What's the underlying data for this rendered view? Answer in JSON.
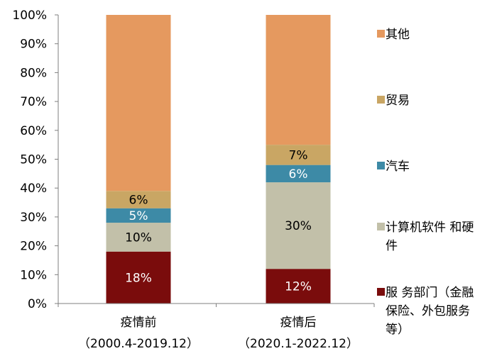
{
  "chart_data": {
    "type": "bar",
    "stacked": true,
    "percent_stacked": true,
    "categories": [
      [
        "疫情前",
        "（2000.4-2019.12）"
      ],
      [
        "疫情后",
        "（2020.1-2022.12）"
      ]
    ],
    "ylim": [
      0,
      100
    ],
    "ytick_step": 10,
    "ytick_suffix": "%",
    "grid": false,
    "legend_position": "right",
    "series": [
      {
        "name": "服 务部门（金融保险、外包服务等）",
        "legend_lines": [
          "服 务部门（金融",
          "保险、外包服务",
          "等）"
        ],
        "color": "#7a0c0c",
        "label_color": "#ffffff",
        "values": [
          18,
          12
        ],
        "labels": [
          "18%",
          "12%"
        ]
      },
      {
        "name": "计算机软件 和硬件",
        "legend_lines": [
          "计算机软件 和硬",
          "件"
        ],
        "color": "#c2c0a9",
        "label_color": "#000000",
        "values": [
          10,
          30
        ],
        "labels": [
          "10%",
          "30%"
        ]
      },
      {
        "name": "汽车",
        "legend_lines": [
          "汽车"
        ],
        "color": "#3d8aa6",
        "label_color": "#ffffff",
        "values": [
          5,
          6
        ],
        "labels": [
          "5%",
          "6%"
        ]
      },
      {
        "name": "贸易",
        "legend_lines": [
          "贸易"
        ],
        "color": "#c9a664",
        "label_color": "#000000",
        "values": [
          6,
          7
        ],
        "labels": [
          "6%",
          "7%"
        ]
      },
      {
        "name": "其他",
        "legend_lines": [
          "其他"
        ],
        "color": "#e5995f",
        "label_color": "#000000",
        "values": [
          61,
          45
        ],
        "labels": [
          "",
          ""
        ]
      }
    ]
  }
}
